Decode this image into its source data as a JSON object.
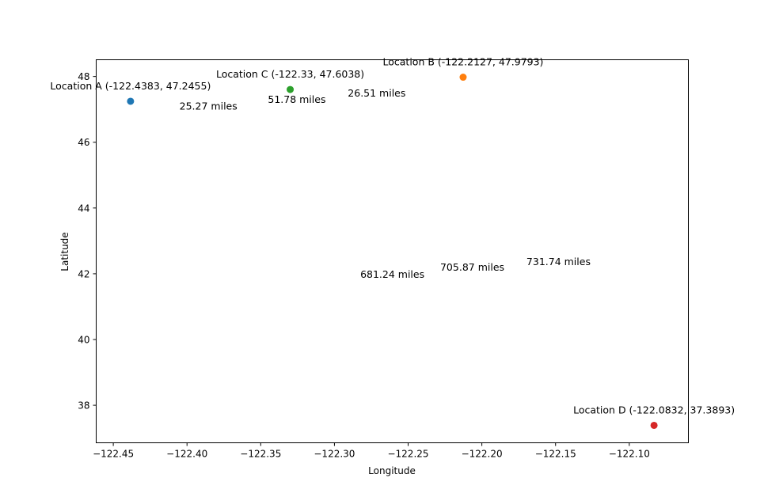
{
  "chart_data": {
    "type": "scatter",
    "title": "",
    "xlabel": "Longitude",
    "ylabel": "Latitude",
    "xlim": [
      -122.4616,
      -122.0599
    ],
    "ylim": [
      36.859,
      48.509
    ],
    "grid": false,
    "x_ticks": [
      -122.45,
      -122.4,
      -122.35,
      -122.3,
      -122.25,
      -122.2,
      -122.15,
      -122.1
    ],
    "x_tick_labels": [
      "−122.45",
      "−122.40",
      "−122.35",
      "−122.30",
      "−122.25",
      "−122.20",
      "−122.15",
      "−122.10"
    ],
    "y_ticks": [
      38,
      40,
      42,
      44,
      46,
      48
    ],
    "y_tick_labels": [
      "38",
      "40",
      "42",
      "44",
      "46",
      "48"
    ],
    "points": [
      {
        "label": "Location A (-122.4383, 47.2455)",
        "x": -122.4383,
        "y": 47.2455,
        "color": "#1f77b4"
      },
      {
        "label": "Location B (-122.2127, 47.9793)",
        "x": -122.2127,
        "y": 47.9793,
        "color": "#ff7f0e"
      },
      {
        "label": "Location C (-122.33, 47.6038)",
        "x": -122.33,
        "y": 47.6038,
        "color": "#2ca02c"
      },
      {
        "label": "Location D (-122.0832, 37.3893)",
        "x": -122.0832,
        "y": 37.3893,
        "color": "#d62728"
      }
    ],
    "distance_labels": [
      {
        "text": "25.27 miles",
        "x": -122.3855,
        "y": 47.1
      },
      {
        "text": "26.51 miles",
        "x": -122.2713,
        "y": 47.5
      },
      {
        "text": "51.78 miles",
        "x": -122.3255,
        "y": 47.3
      },
      {
        "text": "681.24 miles",
        "x": -122.2607,
        "y": 41.99
      },
      {
        "text": "705.87 miles",
        "x": -122.2065,
        "y": 42.2
      },
      {
        "text": "731.74 miles",
        "x": -122.148,
        "y": 42.37
      }
    ]
  }
}
